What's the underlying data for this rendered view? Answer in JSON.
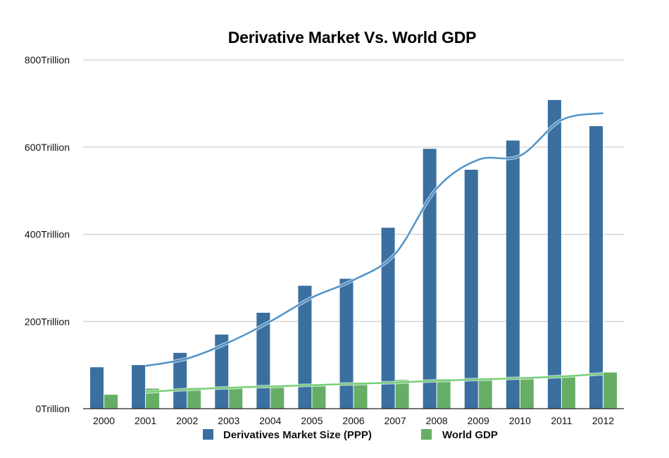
{
  "chart_data": {
    "type": "bar",
    "title": "Derivative Market Vs. World GDP",
    "xlabel": "",
    "ylabel": "",
    "categories": [
      "2000",
      "2001",
      "2002",
      "2003",
      "2004",
      "2005",
      "2006",
      "2007",
      "2008",
      "2009",
      "2010",
      "2011",
      "2012"
    ],
    "series": [
      {
        "name": "Derivatives Market Size (PPP)",
        "color": "#3a6f9f",
        "values": [
          95,
          100,
          128,
          170,
          220,
          282,
          298,
          415,
          596,
          548,
          615,
          708,
          648
        ]
      },
      {
        "name": "World GDP",
        "color": "#66ae66",
        "values": [
          32,
          46,
          48,
          50,
          52,
          55,
          60,
          66,
          68,
          70,
          72,
          76,
          83
        ]
      }
    ],
    "trendlines": [
      {
        "series": "Derivatives Market Size (PPP)",
        "color": "#4f93c9",
        "x": [
          "2001",
          "2002",
          "2003",
          "2004",
          "2005",
          "2006",
          "2007",
          "2008",
          "2009",
          "2010",
          "2011",
          "2012"
        ],
        "values": [
          98,
          115,
          152,
          200,
          255,
          295,
          355,
          505,
          571,
          580,
          662,
          678
        ]
      },
      {
        "series": "World GDP",
        "color": "#78d078",
        "x": [
          "2001",
          "2002",
          "2003",
          "2004",
          "2005",
          "2006",
          "2007",
          "2008",
          "2009",
          "2010",
          "2011",
          "2012"
        ],
        "values": [
          38,
          44,
          48,
          51,
          54,
          57,
          60,
          64,
          67,
          70,
          74,
          80
        ]
      }
    ],
    "yticks": [
      "0Trillion",
      "200Trillion",
      "400Trillion",
      "600Trillion",
      "800Trillion"
    ],
    "ytick_values": [
      0,
      200,
      400,
      600,
      800
    ],
    "ylim": [
      0,
      800
    ],
    "grid": true,
    "legend_position": "bottom"
  }
}
